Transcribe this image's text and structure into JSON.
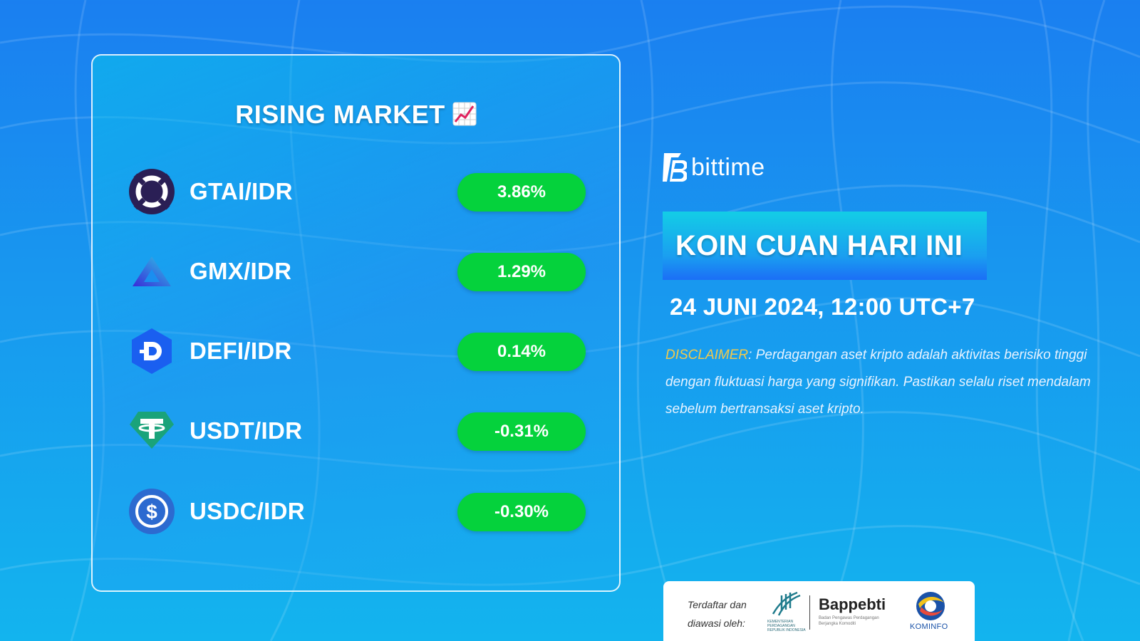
{
  "panel": {
    "title": "RISING MARKET",
    "title_emoji": "chart-increasing-icon",
    "items": [
      {
        "pair": "GTAI/IDR",
        "change": "3.86%",
        "icon": "gtai-coin-icon"
      },
      {
        "pair": "GMX/IDR",
        "change": "1.29%",
        "icon": "gmx-coin-icon"
      },
      {
        "pair": "DEFI/IDR",
        "change": "0.14%",
        "icon": "defi-coin-icon"
      },
      {
        "pair": "USDT/IDR",
        "change": "-0.31%",
        "icon": "usdt-coin-icon"
      },
      {
        "pair": "USDC/IDR",
        "change": "-0.30%",
        "icon": "usdc-coin-icon"
      }
    ]
  },
  "brand": {
    "name": "bittime"
  },
  "headline": "KOIN CUAN HARI INI",
  "date": "24 JUNI 2024, 12:00 UTC+7",
  "disclaimer": {
    "label": "DISCLAIMER",
    "text": ": Perdagangan aset kripto adalah aktivitas berisiko tinggi dengan fluktuasi harga yang signifikan. Pastikan selalu riset mendalam sebelum bertransaksi aset kripto."
  },
  "regulators": {
    "intro_line1": "Terdaftar dan",
    "intro_line2": "diawasi oleh:",
    "kemendag": "KEMENTERIAN PERDAGANGAN REPUBLIK INDONESIA",
    "bappebti": "Bappebti",
    "bappebti_sub": "Badan Pengawas Perdagangan Berjangka Komoditi",
    "kominfo": "KOMINFO"
  },
  "colors": {
    "bg_top": "#1a7ff0",
    "bg_bottom": "#13b4ee",
    "pill_green": "#05d23c",
    "disclaimer_label": "#f2c94c"
  }
}
